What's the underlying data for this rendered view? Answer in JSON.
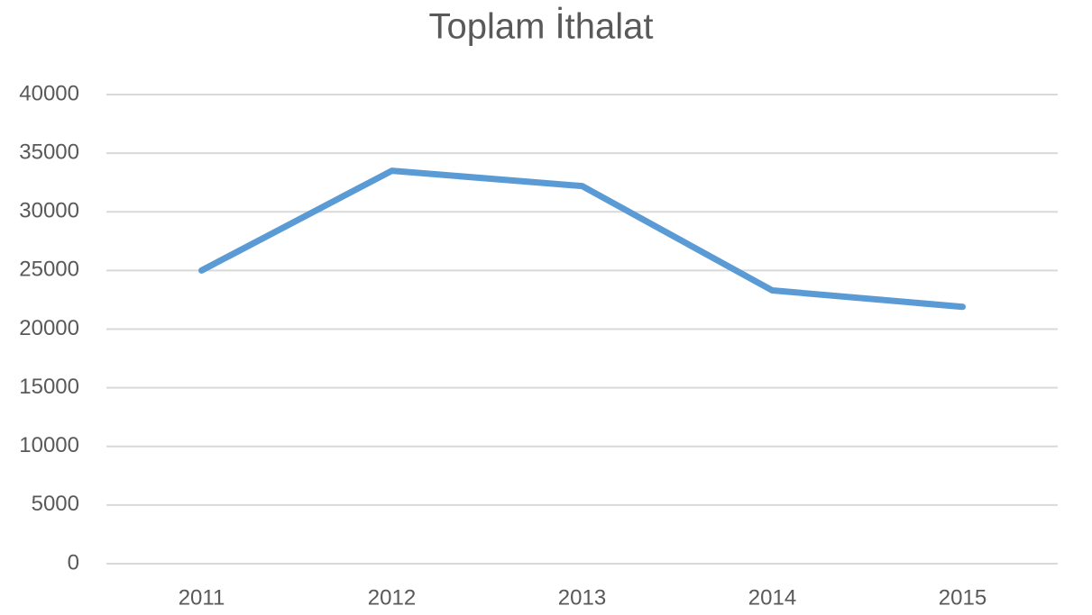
{
  "chart_data": {
    "type": "line",
    "title": "Toplam İthalat",
    "categories": [
      "2011",
      "2012",
      "2013",
      "2014",
      "2015"
    ],
    "series": [
      {
        "name": "Toplam İthalat",
        "color": "#5b9bd5",
        "values": [
          25000,
          33500,
          32200,
          23300,
          21900
        ]
      }
    ],
    "ylim": [
      0,
      40000
    ],
    "yticks": [
      0,
      5000,
      10000,
      15000,
      20000,
      25000,
      30000,
      35000,
      40000
    ],
    "grid": true
  }
}
